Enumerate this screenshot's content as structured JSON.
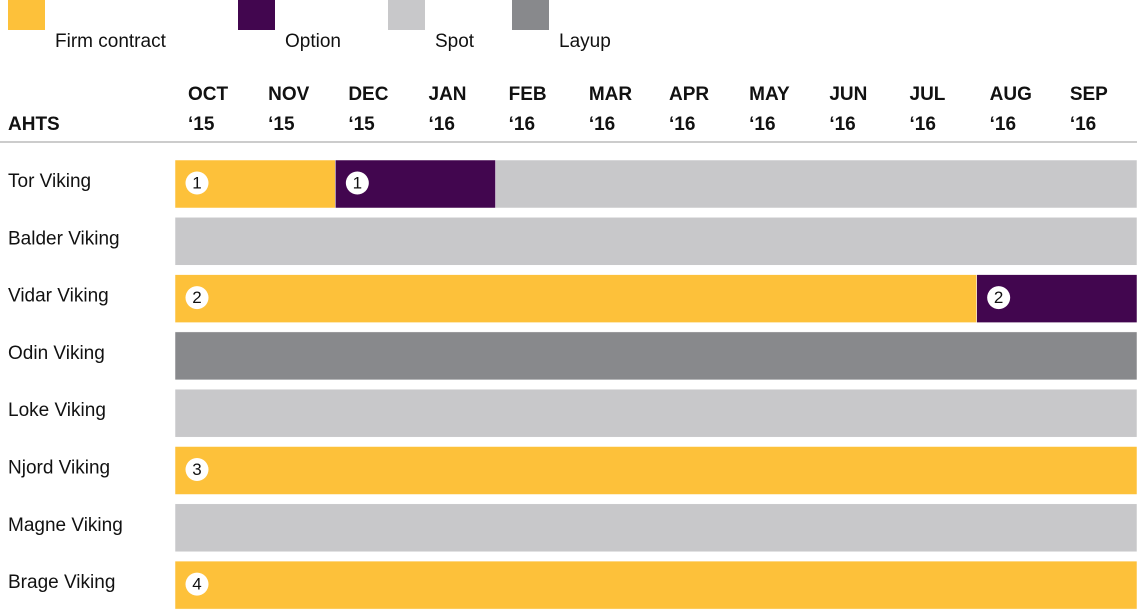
{
  "chart_data": {
    "type": "gantt",
    "legend": [
      {
        "name": "Firm contract",
        "color": "#fdc13a"
      },
      {
        "name": "Option",
        "color": "#42064f"
      },
      {
        "name": "Spot",
        "color": "#c8c8ca"
      },
      {
        "name": "Layup",
        "color": "#88898c"
      }
    ],
    "y_label": "AHTS",
    "months": [
      "OCT",
      "NOV",
      "DEC",
      "JAN",
      "FEB",
      "MAR",
      "APR",
      "MAY",
      "JUN",
      "JUL",
      "AUG",
      "SEP"
    ],
    "years": [
      "‘15",
      "‘15",
      "‘15",
      "‘16",
      "‘16",
      "‘16",
      "‘16",
      "‘16",
      "‘16",
      "‘16",
      "‘16",
      "‘16"
    ],
    "xlim": [
      0,
      12
    ],
    "rows": [
      {
        "name": "Tor Viking",
        "segments": [
          {
            "status": "Firm contract",
            "start": 0,
            "end": 2,
            "label": "1"
          },
          {
            "status": "Option",
            "start": 2,
            "end": 4,
            "label": "1"
          },
          {
            "status": "Spot",
            "start": 4,
            "end": 12
          }
        ]
      },
      {
        "name": "Balder Viking",
        "segments": [
          {
            "status": "Spot",
            "start": 0,
            "end": 12
          }
        ]
      },
      {
        "name": "Vidar Viking",
        "segments": [
          {
            "status": "Firm contract",
            "start": 0,
            "end": 10,
            "label": "2"
          },
          {
            "status": "Option",
            "start": 10,
            "end": 12,
            "label": "2"
          }
        ]
      },
      {
        "name": "Odin Viking",
        "segments": [
          {
            "status": "Layup",
            "start": 0,
            "end": 12
          }
        ]
      },
      {
        "name": "Loke Viking",
        "segments": [
          {
            "status": "Spot",
            "start": 0,
            "end": 12
          }
        ]
      },
      {
        "name": "Njord Viking",
        "segments": [
          {
            "status": "Firm contract",
            "start": 0,
            "end": 12,
            "label": "3"
          }
        ]
      },
      {
        "name": "Magne Viking",
        "segments": [
          {
            "status": "Spot",
            "start": 0,
            "end": 12
          }
        ]
      },
      {
        "name": "Brage Viking",
        "segments": [
          {
            "status": "Firm contract",
            "start": 0,
            "end": 12,
            "label": "4"
          }
        ]
      }
    ]
  }
}
